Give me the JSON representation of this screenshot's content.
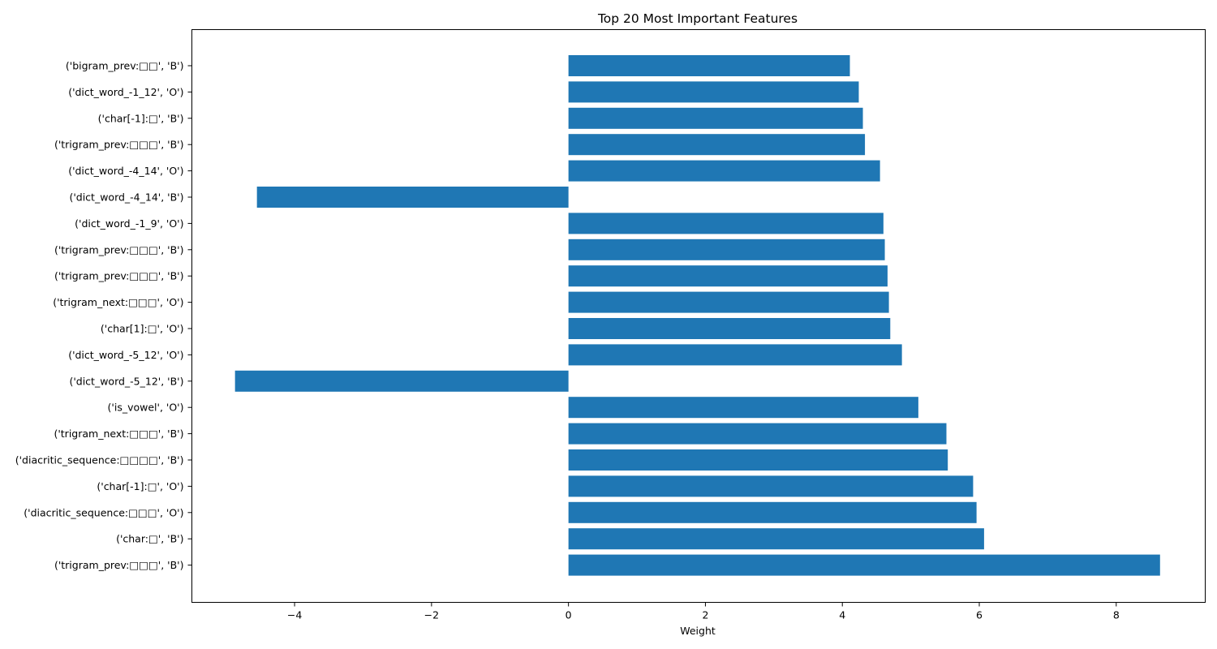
{
  "chart_data": {
    "type": "bar",
    "orientation": "horizontal",
    "title": "Top 20 Most Important Features",
    "xlabel": "Weight",
    "ylabel": "",
    "xlim": [
      -5.5,
      9.3
    ],
    "xticks": [
      -4,
      -2,
      0,
      2,
      4,
      6,
      8
    ],
    "xtick_labels": [
      "−4",
      "−2",
      "0",
      "2",
      "4",
      "6",
      "8"
    ],
    "grid": false,
    "bar_color": "#1f77b4",
    "categories": [
      "('bigram_prev:□□', 'B')",
      "('dict_word_-1_12', 'O')",
      "('char[-1]:□', 'B')",
      "('trigram_prev:□□□', 'B')",
      "('dict_word_-4_14', 'O')",
      "('dict_word_-4_14', 'B')",
      "('dict_word_-1_9', 'O')",
      "('trigram_prev:□□□', 'B')",
      "('trigram_prev:□□□', 'B')",
      "('trigram_next:□□□', 'O')",
      "('char[1]:□', 'O')",
      "('dict_word_-5_12', 'O')",
      "('dict_word_-5_12', 'B')",
      "('is_vowel', 'O')",
      "('trigram_next:□□□', 'B')",
      "('diacritic_sequence:□□□□', 'B')",
      "('char[-1]:□', 'O')",
      "('diacritic_sequence:□□□', 'O')",
      "('char:□', 'B')",
      "('trigram_prev:□□□', 'B')"
    ],
    "values": [
      4.11,
      4.24,
      4.3,
      4.33,
      4.55,
      -4.55,
      4.6,
      4.62,
      4.66,
      4.68,
      4.7,
      4.87,
      -4.87,
      5.11,
      5.52,
      5.54,
      5.91,
      5.96,
      6.07,
      8.64
    ]
  }
}
